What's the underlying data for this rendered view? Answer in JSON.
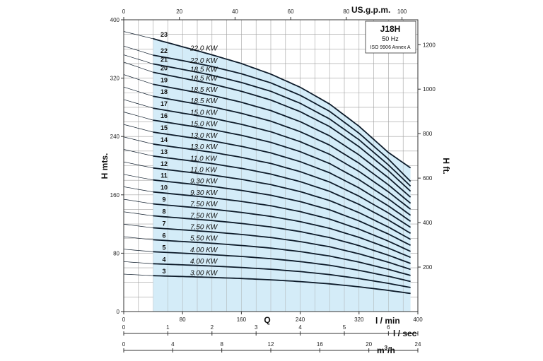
{
  "chart_data": {
    "type": "line",
    "model": "J18H",
    "frequency": "50 Hz",
    "standard": "ISO 9906 Annex A",
    "colors": {
      "region": "#d4ecf8",
      "curve": "#0d1b2a",
      "grid": "#a0a0a0",
      "axis": "#333333"
    },
    "axes": {
      "x_primary": {
        "label": "Q",
        "unit": "l / min",
        "range": [
          0,
          400
        ],
        "ticks": [
          0,
          80,
          160,
          240,
          320,
          400
        ],
        "tick_labels": [
          "0",
          "80",
          "160",
          "240",
          "320",
          "400"
        ]
      },
      "x_top": {
        "label": "US.g.p.m.",
        "range": [
          0,
          105.7
        ],
        "ticks": [
          0,
          20,
          40,
          60,
          80,
          100
        ],
        "tick_labels": [
          "0",
          "20",
          "40",
          "60",
          "80",
          "100"
        ]
      },
      "x_lsec": {
        "label": "l / sec",
        "range": [
          0,
          6.667
        ],
        "ticks": [
          0,
          1,
          2,
          3,
          4,
          5,
          6
        ],
        "tick_labels": [
          "0",
          "1",
          "2",
          "3",
          "4",
          "5",
          "6"
        ]
      },
      "x_m3h": {
        "label_prefix": "m",
        "label_sup": "3",
        "label_suffix": "/h",
        "range": [
          0,
          24
        ],
        "ticks": [
          0,
          4,
          8,
          12,
          16,
          20,
          24
        ],
        "tick_labels": [
          "0",
          "4",
          "8",
          "12",
          "16",
          "20",
          "24"
        ]
      },
      "y_left": {
        "label": "H mts.",
        "range": [
          0,
          400
        ],
        "ticks": [
          0,
          80,
          160,
          240,
          320,
          400
        ],
        "tick_labels": [
          "0",
          "80",
          "160",
          "240",
          "320",
          "400"
        ]
      },
      "y_right": {
        "label": "H ft.",
        "range": [
          0,
          1312
        ],
        "ticks": [
          200,
          400,
          600,
          800,
          1000,
          1200
        ],
        "tick_labels": [
          "200",
          "400",
          "600",
          "800",
          "1000",
          "1200"
        ]
      }
    },
    "operating_range": [
      40,
      390
    ],
    "x": [
      0,
      40,
      80,
      120,
      160,
      200,
      240,
      280,
      320,
      360,
      390
    ],
    "series": [
      {
        "stages": "3",
        "power": "3.00 KW",
        "values": [
          51.3,
          49.2,
          48.0,
          46.8,
          45.3,
          43.5,
          41.1,
          38.0,
          33.9,
          29.0,
          24.8
        ]
      },
      {
        "stages": "4",
        "power": "4.00 KW",
        "values": [
          68.4,
          65.6,
          64.0,
          62.4,
          60.4,
          58.0,
          54.8,
          50.7,
          45.2,
          38.6,
          33.0
        ]
      },
      {
        "stages": "5",
        "power": "4.00 KW",
        "values": [
          85.5,
          82.0,
          80.0,
          78.0,
          75.5,
          72.5,
          68.5,
          63.4,
          56.5,
          48.3,
          41.3
        ]
      },
      {
        "stages": "6",
        "power": "5.50 KW",
        "values": [
          102.6,
          98.4,
          96.0,
          93.6,
          90.6,
          87.0,
          82.2,
          76.1,
          67.8,
          57.9,
          49.5
        ]
      },
      {
        "stages": "7",
        "power": "7.50 KW",
        "values": [
          119.7,
          114.8,
          112.0,
          109.2,
          105.7,
          101.5,
          95.9,
          88.8,
          79.1,
          67.6,
          57.8
        ]
      },
      {
        "stages": "8",
        "power": "7.50 KW",
        "values": [
          136.8,
          131.2,
          128.0,
          124.8,
          120.8,
          116.0,
          109.6,
          101.4,
          90.4,
          77.2,
          66.0
        ]
      },
      {
        "stages": "9",
        "power": "7.50 KW",
        "values": [
          153.9,
          147.6,
          144.0,
          140.4,
          135.9,
          130.5,
          123.3,
          114.1,
          101.7,
          86.9,
          74.3
        ]
      },
      {
        "stages": "10",
        "power": "9.30 KW",
        "values": [
          171.0,
          164.0,
          160.0,
          156.0,
          151.0,
          145.0,
          137.0,
          126.8,
          113.0,
          96.5,
          82.5
        ]
      },
      {
        "stages": "11",
        "power": "9.30 KW",
        "values": [
          188.1,
          180.4,
          176.0,
          171.6,
          166.1,
          159.5,
          150.7,
          139.5,
          124.3,
          106.2,
          90.8
        ]
      },
      {
        "stages": "12",
        "power": "11.0 KW",
        "values": [
          205.2,
          196.8,
          192.0,
          187.2,
          181.2,
          174.0,
          164.4,
          152.2,
          135.6,
          115.8,
          99.0
        ]
      },
      {
        "stages": "13",
        "power": "11.0 KW",
        "values": [
          222.3,
          213.2,
          208.0,
          202.8,
          196.3,
          188.5,
          178.1,
          164.8,
          146.9,
          125.5,
          107.3
        ]
      },
      {
        "stages": "14",
        "power": "13.0 KW",
        "values": [
          239.4,
          229.6,
          224.0,
          218.4,
          211.4,
          203.0,
          191.8,
          177.5,
          158.2,
          135.1,
          115.5
        ]
      },
      {
        "stages": "15",
        "power": "13.0 KW",
        "values": [
          256.5,
          246.0,
          240.0,
          234.0,
          226.5,
          217.5,
          205.5,
          190.2,
          169.5,
          144.8,
          123.8
        ]
      },
      {
        "stages": "16",
        "power": "15.0 KW",
        "values": [
          273.6,
          262.4,
          256.0,
          249.6,
          241.6,
          232.0,
          219.2,
          202.9,
          180.8,
          154.4,
          132.0
        ]
      },
      {
        "stages": "17",
        "power": "15.0 KW",
        "values": [
          290.7,
          278.8,
          272.0,
          265.2,
          256.7,
          246.5,
          232.9,
          215.6,
          192.1,
          164.1,
          140.3
        ]
      },
      {
        "stages": "18",
        "power": "18.5 KW",
        "values": [
          307.8,
          295.2,
          288.0,
          280.8,
          271.8,
          261.0,
          246.6,
          228.2,
          203.4,
          173.7,
          148.5
        ]
      },
      {
        "stages": "19",
        "power": "18.5 KW",
        "values": [
          324.9,
          311.6,
          304.0,
          296.4,
          286.9,
          275.5,
          260.3,
          240.9,
          214.7,
          183.4,
          156.8
        ]
      },
      {
        "stages": "20",
        "power": "18.5 KW",
        "values": [
          342.0,
          328.0,
          320.0,
          312.0,
          302.0,
          290.0,
          274.0,
          253.6,
          226.0,
          193.0,
          165.0
        ]
      },
      {
        "stages": "21",
        "power": "18.5 KW",
        "values": [
          352.0,
          339.5,
          332.0,
          324.0,
          314.0,
          302.0,
          285.5,
          264.0,
          235.5,
          201.0,
          172.0
        ]
      },
      {
        "stages": "22",
        "power": "22.0 KW",
        "values": [
          364.0,
          351.5,
          344.0,
          336.0,
          326.0,
          313.5,
          296.5,
          274.5,
          244.5,
          209.0,
          178.5
        ]
      },
      {
        "stages": "23",
        "power": "22.0 KW",
        "values": [
          384.0,
          374.0,
          363.0,
          352.0,
          340.0,
          325.5,
          307.5,
          284.5,
          254.0,
          218.0,
          197.0
        ]
      }
    ]
  }
}
